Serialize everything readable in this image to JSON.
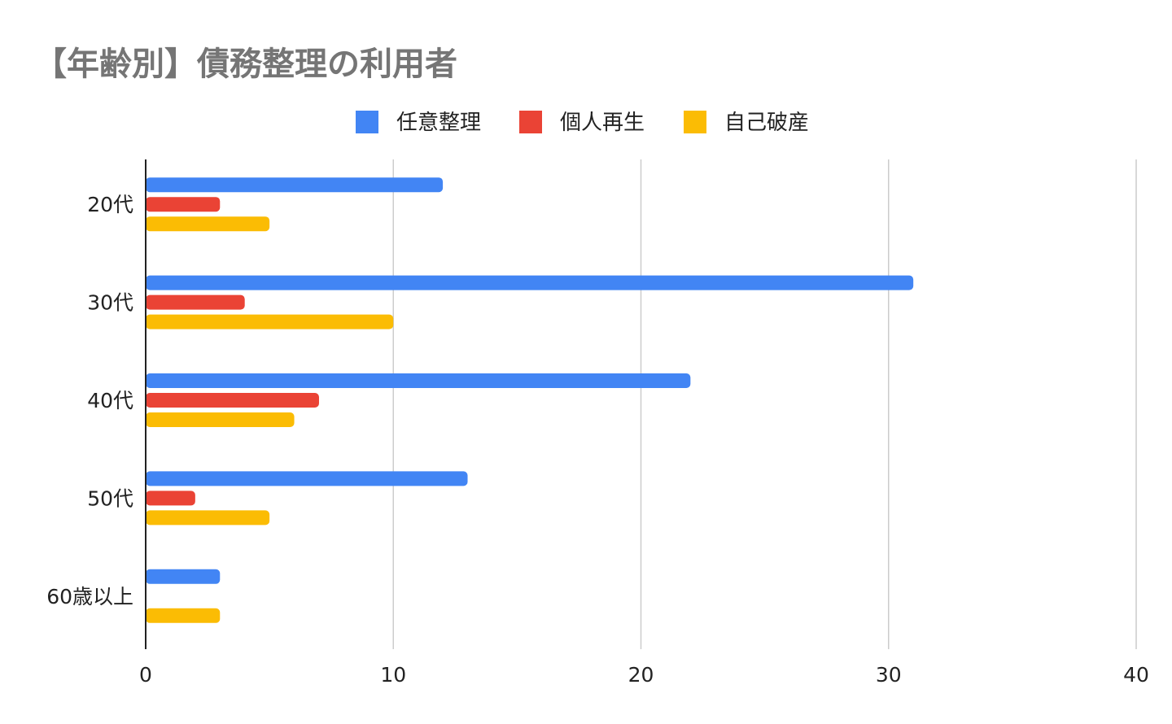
{
  "chart_data": {
    "type": "bar",
    "orientation": "horizontal",
    "title": "【年齢別】債務整理の利用者",
    "categories": [
      "20代",
      "30代",
      "40代",
      "50代",
      "60歳以上"
    ],
    "series": [
      {
        "name": "任意整理",
        "color": "#4285F4",
        "values": [
          12,
          31,
          22,
          13,
          3
        ]
      },
      {
        "name": "個人再生",
        "color": "#EA4335",
        "values": [
          3,
          4,
          7,
          2,
          0
        ]
      },
      {
        "name": "自己破産",
        "color": "#FBBC04",
        "values": [
          5,
          10,
          6,
          5,
          3
        ]
      }
    ],
    "xlim": [
      0,
      40
    ],
    "xticks": [
      "0",
      "10",
      "20",
      "30",
      "40"
    ],
    "grid": true,
    "legend_position": "top"
  }
}
